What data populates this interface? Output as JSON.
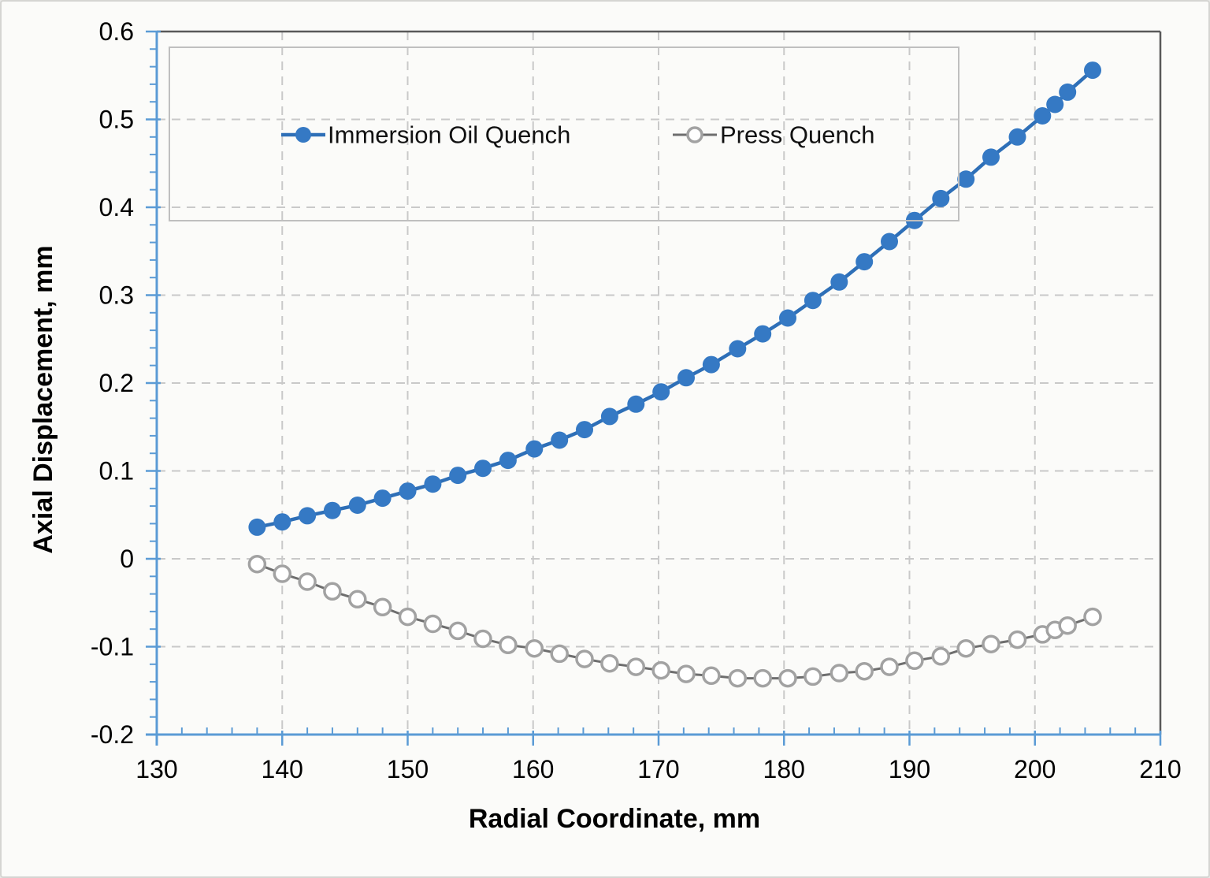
{
  "chart_data": {
    "type": "line",
    "title": "",
    "xlabel": "Radial Coordinate, mm",
    "ylabel": "Axial Displacement, mm",
    "xlim": [
      130,
      210
    ],
    "ylim": [
      -0.2,
      0.6
    ],
    "grid": "dashed",
    "legend_position": "top",
    "x_ticks": [
      {
        "value": 130,
        "label": "130"
      },
      {
        "value": 140,
        "label": "140"
      },
      {
        "value": 150,
        "label": "150"
      },
      {
        "value": 160,
        "label": "160"
      },
      {
        "value": 170,
        "label": "170"
      },
      {
        "value": 180,
        "label": "180"
      },
      {
        "value": 190,
        "label": "190"
      },
      {
        "value": 200,
        "label": "200"
      },
      {
        "value": 210,
        "label": "210"
      }
    ],
    "y_ticks": [
      {
        "value": 0.6,
        "label": "0.6"
      },
      {
        "value": 0.5,
        "label": "0.5"
      },
      {
        "value": 0.4,
        "label": "0.4"
      },
      {
        "value": 0.3,
        "label": "0.3"
      },
      {
        "value": 0.2,
        "label": "0.2"
      },
      {
        "value": 0.1,
        "label": "0.1"
      },
      {
        "value": 0,
        "label": "0"
      },
      {
        "value": -0.1,
        "label": "-0.1"
      },
      {
        "value": -0.2,
        "label": "-0.2"
      }
    ],
    "x_minor_step": 2,
    "y_minor_step": 0.02,
    "x": [
      138,
      140,
      142,
      144,
      146,
      148,
      150,
      152,
      154,
      156,
      158,
      160.1,
      162.1,
      164.1,
      166.1,
      168.2,
      170.2,
      172.2,
      174.2,
      176.3,
      178.3,
      180.3,
      182.3,
      184.4,
      186.4,
      188.4,
      190.4,
      192.5,
      194.5,
      196.5,
      198.6,
      200.6,
      201.6,
      202.6,
      204.6
    ],
    "series": [
      {
        "name": "Immersion Oil Quench",
        "marker": "filled-circle",
        "line_color": "#2e6fb7",
        "marker_color": "#3579c4",
        "values": [
          0.036,
          0.042,
          0.049,
          0.055,
          0.061,
          0.069,
          0.077,
          0.085,
          0.095,
          0.103,
          0.112,
          0.125,
          0.135,
          0.147,
          0.162,
          0.176,
          0.19,
          0.206,
          0.221,
          0.239,
          0.256,
          0.274,
          0.294,
          0.315,
          0.338,
          0.361,
          0.385,
          0.41,
          0.432,
          0.457,
          0.48,
          0.504,
          0.517,
          0.531,
          0.556
        ]
      },
      {
        "name": "Press Quench",
        "marker": "open-circle",
        "line_color": "#6e6e6e",
        "marker_color": "#a2a2a2",
        "values": [
          -0.006,
          -0.017,
          -0.026,
          -0.037,
          -0.046,
          -0.055,
          -0.066,
          -0.074,
          -0.082,
          -0.091,
          -0.098,
          -0.102,
          -0.108,
          -0.114,
          -0.119,
          -0.123,
          -0.127,
          -0.131,
          -0.133,
          -0.136,
          -0.136,
          -0.136,
          -0.134,
          -0.13,
          -0.128,
          -0.123,
          -0.116,
          -0.111,
          -0.102,
          -0.097,
          -0.092,
          -0.086,
          -0.081,
          -0.076,
          -0.066
        ]
      }
    ]
  },
  "style_colors": {
    "axis_blue": "#5b9bd5",
    "grid_gray": "#c9c9c9",
    "plot_border_dark": "#595959",
    "legend_border": "#bfbfbf"
  }
}
